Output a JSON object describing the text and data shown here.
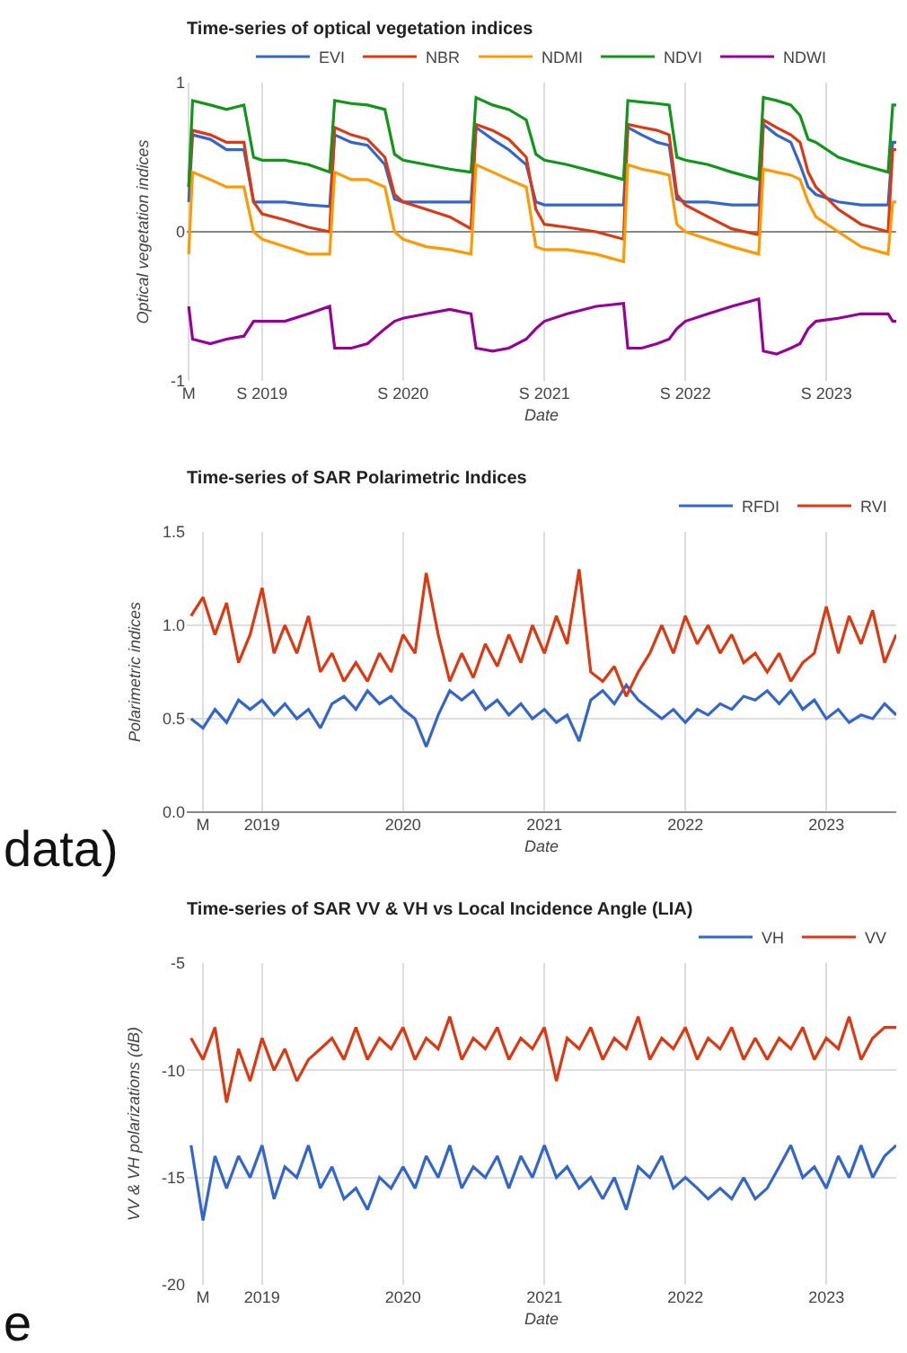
{
  "chart_data": [
    {
      "type": "line",
      "title": "Time-series of optical vegetation indices",
      "xlabel": "Date",
      "ylabel": "Optical vegetation indices",
      "legend": "top",
      "grid": true,
      "xlim": [
        "2018-06-20",
        "2023-07-01"
      ],
      "ylim": [
        -1,
        1
      ],
      "yticks": [
        -1,
        0,
        1
      ],
      "xticks": [
        {
          "value": "2018-06-25",
          "label": "M"
        },
        {
          "value": "2019-01-01",
          "label": "S 2019"
        },
        {
          "value": "2020-01-01",
          "label": "S 2020"
        },
        {
          "value": "2021-01-01",
          "label": "S 2021"
        },
        {
          "value": "2022-01-01",
          "label": "S 2022"
        },
        {
          "value": "2023-01-01",
          "label": "S 2023"
        }
      ],
      "x": [
        "2018-06-25",
        "2018-07-05",
        "2018-08-20",
        "2018-10-01",
        "2018-11-15",
        "2018-12-10",
        "2019-01-01",
        "2019-03-01",
        "2019-05-01",
        "2019-06-25",
        "2019-07-08",
        "2019-08-20",
        "2019-10-01",
        "2019-11-15",
        "2019-12-10",
        "2020-01-01",
        "2020-03-01",
        "2020-05-01",
        "2020-06-25",
        "2020-07-08",
        "2020-08-20",
        "2020-10-01",
        "2020-11-15",
        "2020-12-10",
        "2021-01-01",
        "2021-03-01",
        "2021-05-15",
        "2021-07-25",
        "2021-08-05",
        "2021-09-10",
        "2021-10-20",
        "2021-11-20",
        "2021-12-10",
        "2022-01-01",
        "2022-03-01",
        "2022-05-01",
        "2022-07-10",
        "2022-07-22",
        "2022-08-25",
        "2022-10-01",
        "2022-10-25",
        "2022-11-15",
        "2022-12-05",
        "2023-02-01",
        "2023-04-01",
        "2023-06-10",
        "2023-06-22",
        "2023-07-01"
      ],
      "series": [
        {
          "name": "EVI",
          "color": "#3366cc",
          "values": [
            0.2,
            0.65,
            0.62,
            0.55,
            0.55,
            0.2,
            0.2,
            0.2,
            0.18,
            0.17,
            0.65,
            0.6,
            0.58,
            0.45,
            0.22,
            0.2,
            0.2,
            0.2,
            0.2,
            0.7,
            0.62,
            0.55,
            0.45,
            0.2,
            0.18,
            0.18,
            0.18,
            0.18,
            0.7,
            0.65,
            0.6,
            0.58,
            0.22,
            0.2,
            0.2,
            0.18,
            0.18,
            0.72,
            0.65,
            0.6,
            0.45,
            0.3,
            0.25,
            0.2,
            0.18,
            0.18,
            0.6,
            0.6
          ]
        },
        {
          "name": "NBR",
          "color": "#dc3912",
          "values": [
            0.3,
            0.68,
            0.65,
            0.6,
            0.6,
            0.2,
            0.12,
            0.08,
            0.03,
            0.0,
            0.7,
            0.65,
            0.62,
            0.5,
            0.25,
            0.2,
            0.15,
            0.1,
            0.02,
            0.72,
            0.68,
            0.62,
            0.5,
            0.15,
            0.05,
            0.03,
            0.0,
            -0.05,
            0.72,
            0.7,
            0.68,
            0.65,
            0.25,
            0.18,
            0.1,
            0.02,
            -0.02,
            0.75,
            0.7,
            0.65,
            0.6,
            0.4,
            0.3,
            0.15,
            0.05,
            0.0,
            0.55,
            0.55
          ]
        },
        {
          "name": "NDMI",
          "color": "#ff9900",
          "values": [
            -0.15,
            0.4,
            0.35,
            0.3,
            0.3,
            0.0,
            -0.05,
            -0.1,
            -0.15,
            -0.15,
            0.4,
            0.35,
            0.35,
            0.3,
            0.0,
            -0.05,
            -0.1,
            -0.12,
            -0.15,
            0.45,
            0.4,
            0.35,
            0.3,
            -0.1,
            -0.12,
            -0.12,
            -0.15,
            -0.2,
            0.45,
            0.42,
            0.4,
            0.38,
            0.05,
            0.0,
            -0.05,
            -0.1,
            -0.15,
            0.42,
            0.4,
            0.38,
            0.35,
            0.2,
            0.1,
            0.0,
            -0.1,
            -0.15,
            0.2,
            0.2
          ]
        },
        {
          "name": "NDVI",
          "color": "#109618",
          "values": [
            0.3,
            0.88,
            0.85,
            0.82,
            0.85,
            0.5,
            0.48,
            0.48,
            0.45,
            0.4,
            0.88,
            0.86,
            0.85,
            0.82,
            0.52,
            0.48,
            0.45,
            0.42,
            0.4,
            0.9,
            0.85,
            0.82,
            0.75,
            0.52,
            0.48,
            0.45,
            0.4,
            0.35,
            0.88,
            0.87,
            0.86,
            0.85,
            0.5,
            0.48,
            0.45,
            0.4,
            0.35,
            0.9,
            0.88,
            0.85,
            0.78,
            0.62,
            0.6,
            0.5,
            0.45,
            0.4,
            0.85,
            0.85
          ]
        },
        {
          "name": "NDWI",
          "color": "#990099",
          "values": [
            -0.5,
            -0.72,
            -0.75,
            -0.72,
            -0.7,
            -0.6,
            -0.6,
            -0.6,
            -0.55,
            -0.5,
            -0.78,
            -0.78,
            -0.75,
            -0.65,
            -0.6,
            -0.58,
            -0.55,
            -0.52,
            -0.55,
            -0.78,
            -0.8,
            -0.78,
            -0.72,
            -0.65,
            -0.6,
            -0.55,
            -0.5,
            -0.48,
            -0.78,
            -0.78,
            -0.75,
            -0.72,
            -0.65,
            -0.6,
            -0.55,
            -0.5,
            -0.45,
            -0.8,
            -0.82,
            -0.78,
            -0.75,
            -0.65,
            -0.6,
            -0.58,
            -0.55,
            -0.55,
            -0.6,
            -0.6
          ]
        }
      ]
    },
    {
      "type": "line",
      "title": "Time-series of SAR Polarimetric Indices",
      "xlabel": "Date",
      "ylabel": "Polarimetric indices",
      "legend": "top right",
      "grid": true,
      "annotations": [
        "data)"
      ],
      "xlim": [
        "2018-06-20",
        "2023-07-01"
      ],
      "ylim": [
        0,
        1.5
      ],
      "yticks": [
        {
          "value": 0,
          "label": "0.0"
        },
        0.5,
        {
          "value": 1,
          "label": "1.0"
        },
        1.5
      ],
      "xticks": [
        {
          "value": "2018-08-01",
          "label": "M"
        },
        {
          "value": "2019-01-01",
          "label": "2019"
        },
        {
          "value": "2020-01-01",
          "label": "2020"
        },
        {
          "value": "2021-01-01",
          "label": "2021"
        },
        {
          "value": "2022-01-01",
          "label": "2022"
        },
        {
          "value": "2023-01-01",
          "label": "2023"
        }
      ],
      "x": [
        "2018-07",
        "2018-08",
        "2018-09",
        "2018-10",
        "2018-11",
        "2018-12",
        "2019-01",
        "2019-02",
        "2019-03",
        "2019-04",
        "2019-05",
        "2019-06",
        "2019-07",
        "2019-08",
        "2019-09",
        "2019-10",
        "2019-11",
        "2019-12",
        "2020-01",
        "2020-02",
        "2020-03",
        "2020-04",
        "2020-05",
        "2020-06",
        "2020-07",
        "2020-08",
        "2020-09",
        "2020-10",
        "2020-11",
        "2020-12",
        "2021-01",
        "2021-02",
        "2021-03",
        "2021-04",
        "2021-05",
        "2021-06",
        "2021-07",
        "2021-08",
        "2021-09",
        "2021-10",
        "2021-11",
        "2021-12",
        "2022-01",
        "2022-02",
        "2022-03",
        "2022-04",
        "2022-05",
        "2022-06",
        "2022-07",
        "2022-08",
        "2022-09",
        "2022-10",
        "2022-11",
        "2022-12",
        "2023-01",
        "2023-02",
        "2023-03",
        "2023-04",
        "2023-05",
        "2023-06",
        "2023-07"
      ],
      "series": [
        {
          "name": "RFDI",
          "color": "#3366cc",
          "values": [
            0.5,
            0.45,
            0.55,
            0.48,
            0.6,
            0.55,
            0.6,
            0.52,
            0.58,
            0.5,
            0.55,
            0.45,
            0.58,
            0.62,
            0.55,
            0.65,
            0.58,
            0.62,
            0.55,
            0.5,
            0.35,
            0.52,
            0.65,
            0.6,
            0.65,
            0.55,
            0.6,
            0.52,
            0.58,
            0.5,
            0.55,
            0.48,
            0.52,
            0.38,
            0.6,
            0.65,
            0.58,
            0.68,
            0.6,
            0.55,
            0.5,
            0.55,
            0.48,
            0.55,
            0.52,
            0.58,
            0.55,
            0.62,
            0.6,
            0.65,
            0.58,
            0.65,
            0.55,
            0.6,
            0.5,
            0.55,
            0.48,
            0.52,
            0.5,
            0.58,
            0.52
          ]
        },
        {
          "name": "RVI",
          "color": "#dc3912",
          "values": [
            1.05,
            1.15,
            0.95,
            1.12,
            0.8,
            0.95,
            1.2,
            0.85,
            1.0,
            0.85,
            1.05,
            0.75,
            0.85,
            0.7,
            0.8,
            0.7,
            0.85,
            0.75,
            0.95,
            0.85,
            1.28,
            0.95,
            0.7,
            0.85,
            0.72,
            0.9,
            0.78,
            0.95,
            0.8,
            1.0,
            0.85,
            1.05,
            0.9,
            1.3,
            0.75,
            0.7,
            0.78,
            0.62,
            0.75,
            0.85,
            1.0,
            0.85,
            1.05,
            0.9,
            1.0,
            0.85,
            0.95,
            0.8,
            0.85,
            0.75,
            0.85,
            0.7,
            0.8,
            0.85,
            1.1,
            0.85,
            1.05,
            0.9,
            1.08,
            0.8,
            0.95
          ]
        }
      ]
    },
    {
      "type": "line",
      "title": "Time-series of SAR VV & VH vs Local Incidence Angle (LIA)",
      "xlabel": "Date",
      "ylabel": "VV & VH polarizations (dB)",
      "legend": "top right",
      "grid": true,
      "annotations": [
        "e"
      ],
      "xlim": [
        "2018-06-20",
        "2023-07-01"
      ],
      "ylim": [
        -20,
        -5
      ],
      "yticks": [
        -20,
        -15,
        -10,
        -5
      ],
      "xticks": [
        {
          "value": "2018-08-01",
          "label": "M"
        },
        {
          "value": "2019-01-01",
          "label": "2019"
        },
        {
          "value": "2020-01-01",
          "label": "2020"
        },
        {
          "value": "2021-01-01",
          "label": "2021"
        },
        {
          "value": "2022-01-01",
          "label": "2022"
        },
        {
          "value": "2023-01-01",
          "label": "2023"
        }
      ],
      "x": [
        "2018-07",
        "2018-08",
        "2018-09",
        "2018-10",
        "2018-11",
        "2018-12",
        "2019-01",
        "2019-02",
        "2019-03",
        "2019-04",
        "2019-05",
        "2019-06",
        "2019-07",
        "2019-08",
        "2019-09",
        "2019-10",
        "2019-11",
        "2019-12",
        "2020-01",
        "2020-02",
        "2020-03",
        "2020-04",
        "2020-05",
        "2020-06",
        "2020-07",
        "2020-08",
        "2020-09",
        "2020-10",
        "2020-11",
        "2020-12",
        "2021-01",
        "2021-02",
        "2021-03",
        "2021-04",
        "2021-05",
        "2021-06",
        "2021-07",
        "2021-08",
        "2021-09",
        "2021-10",
        "2021-11",
        "2021-12",
        "2022-01",
        "2022-02",
        "2022-03",
        "2022-04",
        "2022-05",
        "2022-06",
        "2022-07",
        "2022-08",
        "2022-09",
        "2022-10",
        "2022-11",
        "2022-12",
        "2023-01",
        "2023-02",
        "2023-03",
        "2023-04",
        "2023-05",
        "2023-06",
        "2023-07"
      ],
      "series": [
        {
          "name": "VH",
          "color": "#3366cc",
          "values": [
            -13.5,
            -17,
            -14,
            -15.5,
            -14,
            -15,
            -13.5,
            -16,
            -14.5,
            -15,
            -13.5,
            -15.5,
            -14.5,
            -16,
            -15.5,
            -16.5,
            -15,
            -15.5,
            -14.5,
            -15.5,
            -14,
            -15,
            -13.5,
            -15.5,
            -14.5,
            -15,
            -14,
            -15.5,
            -14,
            -15,
            -13.5,
            -15,
            -14.5,
            -15.5,
            -15,
            -16,
            -15,
            -16.5,
            -14.5,
            -15,
            -14,
            -15.5,
            -15,
            -15.5,
            -16,
            -15.5,
            -16,
            -15,
            -16,
            -15.5,
            -14.5,
            -13.5,
            -15,
            -14.5,
            -15.5,
            -14,
            -15,
            -13.5,
            -15,
            -14,
            -13.5
          ]
        },
        {
          "name": "VV",
          "color": "#dc3912",
          "values": [
            -8.5,
            -9.5,
            -8,
            -11.5,
            -9,
            -10.5,
            -8.5,
            -10,
            -9,
            -10.5,
            -9.5,
            -9,
            -8.5,
            -9.5,
            -8,
            -9.5,
            -8.5,
            -9,
            -8,
            -9.5,
            -8.5,
            -9,
            -7.5,
            -9.5,
            -8.5,
            -9,
            -8,
            -9.5,
            -8.5,
            -9,
            -8,
            -10.5,
            -8.5,
            -9,
            -8,
            -9.5,
            -8.5,
            -9,
            -7.5,
            -9.5,
            -8.5,
            -9,
            -8,
            -9.5,
            -8.5,
            -9,
            -8,
            -9.5,
            -8.5,
            -9.5,
            -8.5,
            -9,
            -8,
            -9.5,
            -8.5,
            -9,
            -7.5,
            -9.5,
            -8.5,
            -8,
            -8
          ]
        }
      ]
    }
  ]
}
